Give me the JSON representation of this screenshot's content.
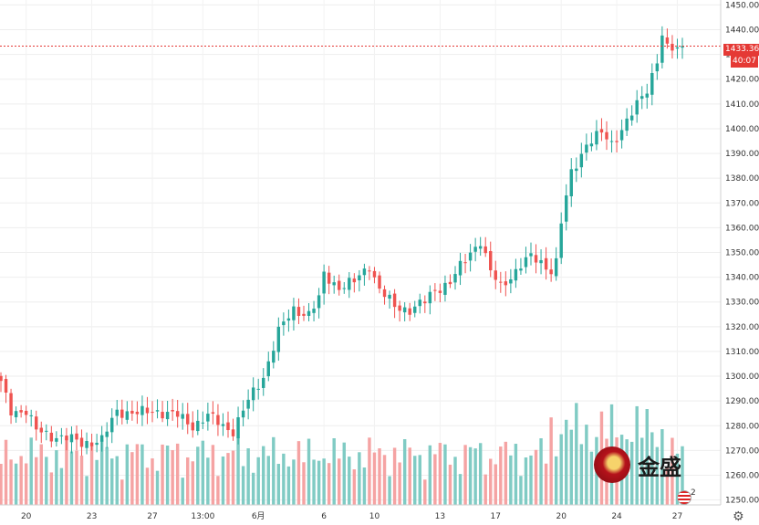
{
  "chart_data": {
    "type": "candlestick",
    "y_axis": {
      "ticks": [
        1250,
        1260,
        1270,
        1280,
        1290,
        1300,
        1310,
        1320,
        1330,
        1340,
        1350,
        1360,
        1370,
        1380,
        1390,
        1400,
        1410,
        1420,
        1430,
        1440,
        1450
      ],
      "tick_labels": [
        "1250.00",
        "1260.00",
        "1270.00",
        "1280.00",
        "1290.00",
        "1300.00",
        "1310.00",
        "1320.00",
        "1330.00",
        "1340.00",
        "1350.00",
        "1360.00",
        "1370.00",
        "1380.00",
        "1390.00",
        "1400.00",
        "1410.00",
        "1420.00",
        "1430.00",
        "1440.00",
        "1450.00"
      ],
      "range": [
        1248,
        1452
      ]
    },
    "x_axis": {
      "tick_labels": [
        "20",
        "23",
        "27",
        "13:00",
        "6月",
        "6",
        "10",
        "13",
        "17",
        "20",
        "24",
        "27"
      ],
      "tick_bar_index": [
        5,
        18,
        30,
        40,
        51,
        64,
        74,
        87,
        98,
        111,
        122,
        134
      ]
    },
    "bar_count": 136,
    "current_price": {
      "value": 1433.36,
      "label": "1433.36",
      "countdown": "40:07"
    },
    "grid": true,
    "colors": {
      "up": "#26a69a",
      "down": "#ef5350",
      "up_volume": "#80cbc4",
      "down_volume": "#f5a3a3",
      "price_line": "#e53935"
    },
    "close_anchors": [
      [
        0,
        1297
      ],
      [
        2,
        1286
      ],
      [
        5,
        1286
      ],
      [
        7,
        1278
      ],
      [
        10,
        1276
      ],
      [
        13,
        1275
      ],
      [
        16,
        1273
      ],
      [
        20,
        1274
      ],
      [
        23,
        1286
      ],
      [
        27,
        1285
      ],
      [
        31,
        1286
      ],
      [
        35,
        1284
      ],
      [
        38,
        1280
      ],
      [
        41,
        1284
      ],
      [
        44,
        1280
      ],
      [
        46,
        1278
      ],
      [
        49,
        1290
      ],
      [
        52,
        1300
      ],
      [
        55,
        1318
      ],
      [
        58,
        1327
      ],
      [
        61,
        1325
      ],
      [
        63,
        1331
      ],
      [
        64,
        1341
      ],
      [
        67,
        1336
      ],
      [
        70,
        1338
      ],
      [
        73,
        1345
      ],
      [
        75,
        1335
      ],
      [
        78,
        1328
      ],
      [
        81,
        1327
      ],
      [
        84,
        1330
      ],
      [
        86,
        1335
      ],
      [
        89,
        1338
      ],
      [
        93,
        1350
      ],
      [
        95,
        1355
      ],
      [
        97,
        1342
      ],
      [
        99,
        1336
      ],
      [
        103,
        1345
      ],
      [
        105,
        1348
      ],
      [
        107,
        1346
      ],
      [
        109,
        1343
      ],
      [
        110,
        1346
      ],
      [
        111,
        1362
      ],
      [
        113,
        1382
      ],
      [
        116,
        1394
      ],
      [
        119,
        1398
      ],
      [
        121,
        1394
      ],
      [
        123,
        1400
      ],
      [
        125,
        1406
      ],
      [
        128,
        1416
      ],
      [
        130,
        1428
      ],
      [
        131,
        1438
      ],
      [
        132,
        1432
      ]
    ],
    "volume_level": "relative"
  },
  "watermark": {
    "logo_text": "金盛"
  },
  "events": {
    "count": "2"
  },
  "icons": {
    "settings": "gear-icon",
    "flag": "us-flag-icon"
  }
}
